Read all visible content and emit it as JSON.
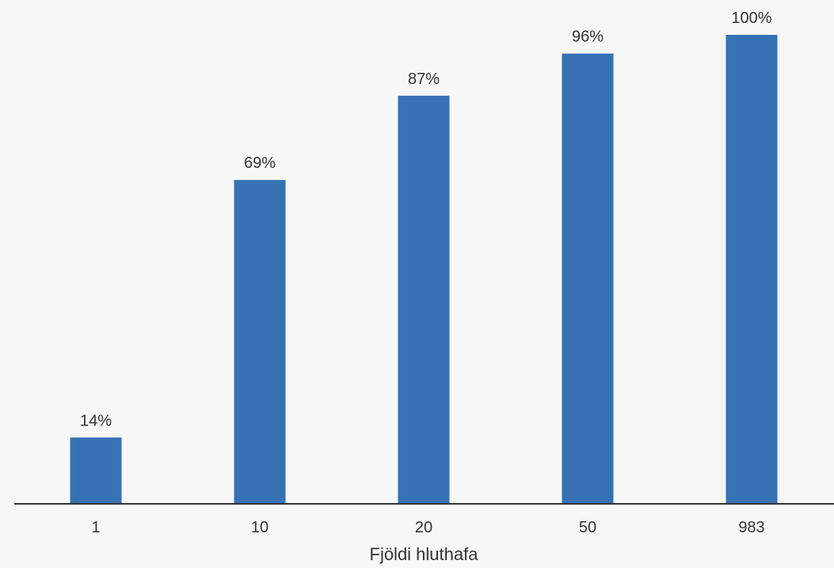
{
  "chart_data": {
    "type": "bar",
    "categories": [
      "1",
      "10",
      "20",
      "50",
      "983"
    ],
    "values": [
      14,
      69,
      87,
      96,
      100
    ],
    "value_labels": [
      "14%",
      "69%",
      "87%",
      "96%",
      "100%"
    ],
    "xlabel": "Fjöldi hluthafa",
    "ylabel": "",
    "ylim": [
      0,
      100
    ],
    "grid": false,
    "legend": "none",
    "colors": {
      "bar": "#3671b3",
      "background": "#f7f7f7",
      "axis": "#333333",
      "text": "#333333"
    }
  }
}
